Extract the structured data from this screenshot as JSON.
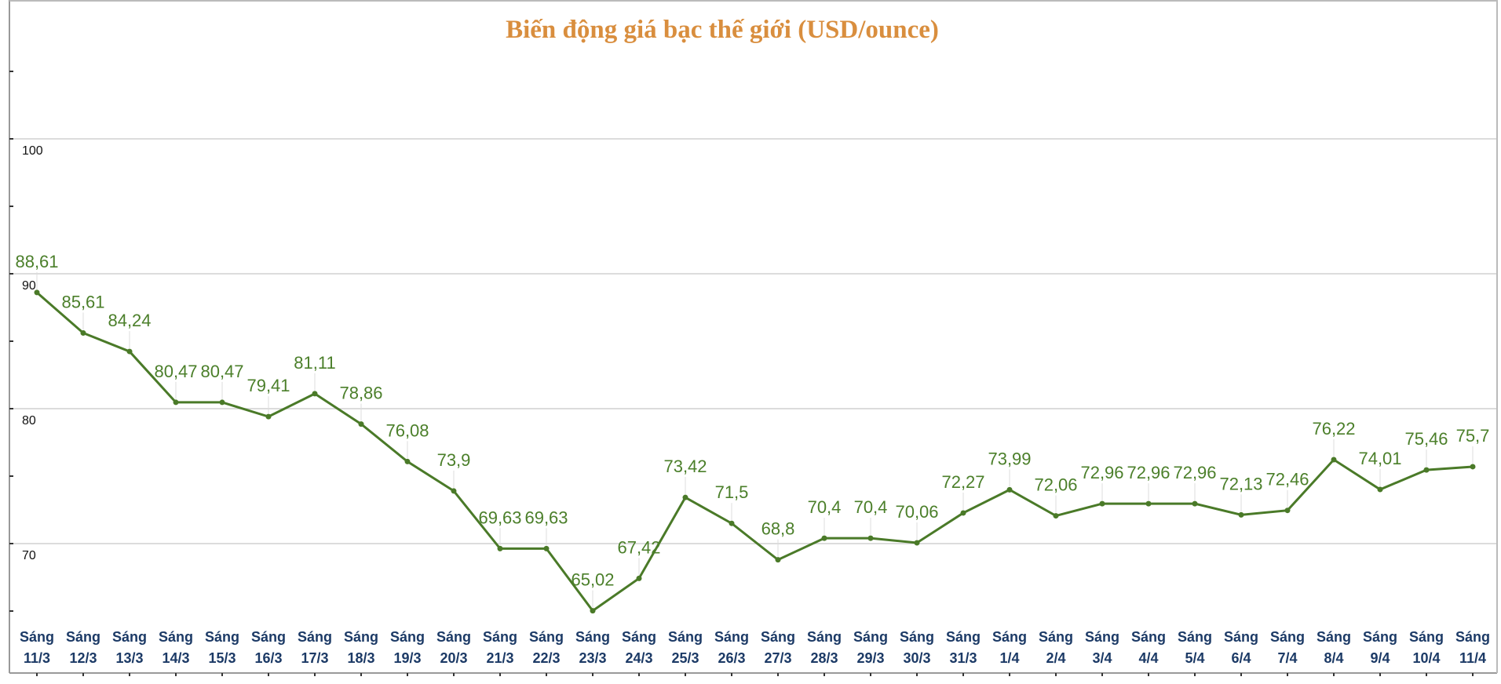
{
  "chart_data": {
    "type": "line",
    "title": "Biến động giá bạc thế giới (USD/ounce)",
    "xlabel": "",
    "ylabel": "",
    "ylim": [
      60,
      110
    ],
    "yticks": [
      70,
      80,
      90,
      100
    ],
    "grid": true,
    "categories": [
      [
        "Sáng",
        "11/3"
      ],
      [
        "Sáng",
        "12/3"
      ],
      [
        "Sáng",
        "13/3"
      ],
      [
        "Sáng",
        "14/3"
      ],
      [
        "Sáng",
        "15/3"
      ],
      [
        "Sáng",
        "16/3"
      ],
      [
        "Sáng",
        "17/3"
      ],
      [
        "Sáng",
        "18/3"
      ],
      [
        "Sáng",
        "19/3"
      ],
      [
        "Sáng",
        "20/3"
      ],
      [
        "Sáng",
        "21/3"
      ],
      [
        "Sáng",
        "22/3"
      ],
      [
        "Sáng",
        "23/3"
      ],
      [
        "Sáng",
        "24/3"
      ],
      [
        "Sáng",
        "25/3"
      ],
      [
        "Sáng",
        "26/3"
      ],
      [
        "Sáng",
        "27/3"
      ],
      [
        "Sáng",
        "28/3"
      ],
      [
        "Sáng",
        "29/3"
      ],
      [
        "Sáng",
        "30/3"
      ],
      [
        "Sáng",
        "31/3"
      ],
      [
        "Sáng",
        "1/4"
      ],
      [
        "Sáng",
        "2/4"
      ],
      [
        "Sáng",
        "3/4"
      ],
      [
        "Sáng",
        "4/4"
      ],
      [
        "Sáng",
        "5/4"
      ],
      [
        "Sáng",
        "6/4"
      ],
      [
        "Sáng",
        "7/4"
      ],
      [
        "Sáng",
        "8/4"
      ],
      [
        "Sáng",
        "9/4"
      ],
      [
        "Sáng",
        "10/4"
      ],
      [
        "Sáng",
        "11/4"
      ]
    ],
    "values": [
      88.61,
      85.61,
      84.24,
      80.47,
      80.47,
      79.41,
      81.11,
      78.86,
      76.08,
      73.9,
      69.63,
      69.63,
      65.02,
      67.42,
      73.42,
      71.5,
      68.8,
      70.4,
      70.4,
      70.06,
      72.27,
      73.99,
      72.06,
      72.96,
      72.96,
      72.96,
      72.13,
      72.46,
      76.22,
      74.01,
      75.46,
      75.7
    ],
    "data_labels": [
      "88,61",
      "85,61",
      "84,24",
      "80,47",
      "80,47",
      "79,41",
      "81,11",
      "78,86",
      "76,08",
      "73,9",
      "69,63",
      "69,63",
      "65,02",
      "67,42",
      "73,42",
      "71,5",
      "68,8",
      "70,4",
      "70,4",
      "70,06",
      "72,27",
      "73,99",
      "72,06",
      "72,96",
      "72,96",
      "72,96",
      "72,13",
      "72,46",
      "76,22",
      "74,01",
      "75,46",
      "75,7"
    ],
    "ytick_labels": [
      "70",
      "80",
      "90",
      "100"
    ],
    "colors": {
      "line": "#4a7a28",
      "data_label": "#4b7f2a",
      "title": "#d98e3e",
      "x_labels": "#1c3a66",
      "grid": "#d0d0d0"
    }
  }
}
